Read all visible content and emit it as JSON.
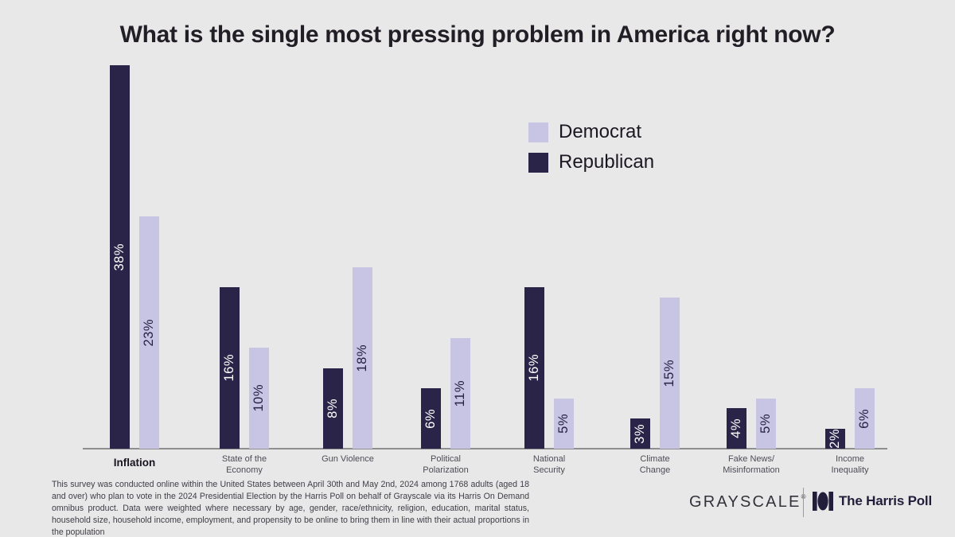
{
  "title": "What is the single most pressing problem in America right now?",
  "legend": [
    {
      "label": "Democrat",
      "color": "#c8c4e4"
    },
    {
      "label": "Republican",
      "color": "#2b2449"
    }
  ],
  "chart_data": {
    "type": "bar",
    "title": "What is the single most pressing problem in America right now?",
    "categories": [
      "Inflation",
      "State of the Economy",
      "Gun Violence",
      "Political Polarization",
      "National Security",
      "Climate Change",
      "Fake News/Misinformation",
      "Income Inequality"
    ],
    "category_lines": [
      [
        "Inflation"
      ],
      [
        "State of the",
        "Economy"
      ],
      [
        "Gun Violence"
      ],
      [
        "Political",
        "Polarization"
      ],
      [
        "National",
        "Security"
      ],
      [
        "Climate",
        "Change"
      ],
      [
        "Fake News/",
        "Misinformation"
      ],
      [
        "Income",
        "Inequality"
      ]
    ],
    "emphasized_category": "Inflation",
    "series": [
      {
        "name": "Republican",
        "color": "#2b2449",
        "label_color": "#ffffff",
        "values": [
          38,
          16,
          8,
          6,
          16,
          3,
          4,
          2
        ]
      },
      {
        "name": "Democrat",
        "color": "#c8c4e4",
        "label_color": "#262043",
        "values": [
          23,
          10,
          18,
          11,
          5,
          15,
          5,
          6
        ]
      }
    ],
    "value_suffix": "%",
    "ylim": [
      0,
      40
    ],
    "grid": false,
    "legend_position": "upper-right",
    "legend_order": [
      "Democrat",
      "Republican"
    ],
    "bar_value_labels": "rotated-90-inside-centered"
  },
  "colors": {
    "background": "#e9e8e9",
    "axis": "#8e8d90",
    "title_text": "#211e26"
  },
  "footnote": "This survey was conducted online within the United States between April 30th and May 2nd, 2024 among 1768 adults (aged 18 and over) who plan to vote in the 2024 Presidential Election by the Harris Poll on behalf of Grayscale via its Harris On Demand omnibus product. Data were weighted where necessary by age, gender, race/ethnicity, religion, education, marital status, household size, household income, employment, and propensity to be online to bring them in line with their actual proportions in the population",
  "branding": {
    "grayscale_wordmark": "GRAYSCALE",
    "grayscale_trademark": "®",
    "harris_wordmark": "The Harris Poll"
  }
}
